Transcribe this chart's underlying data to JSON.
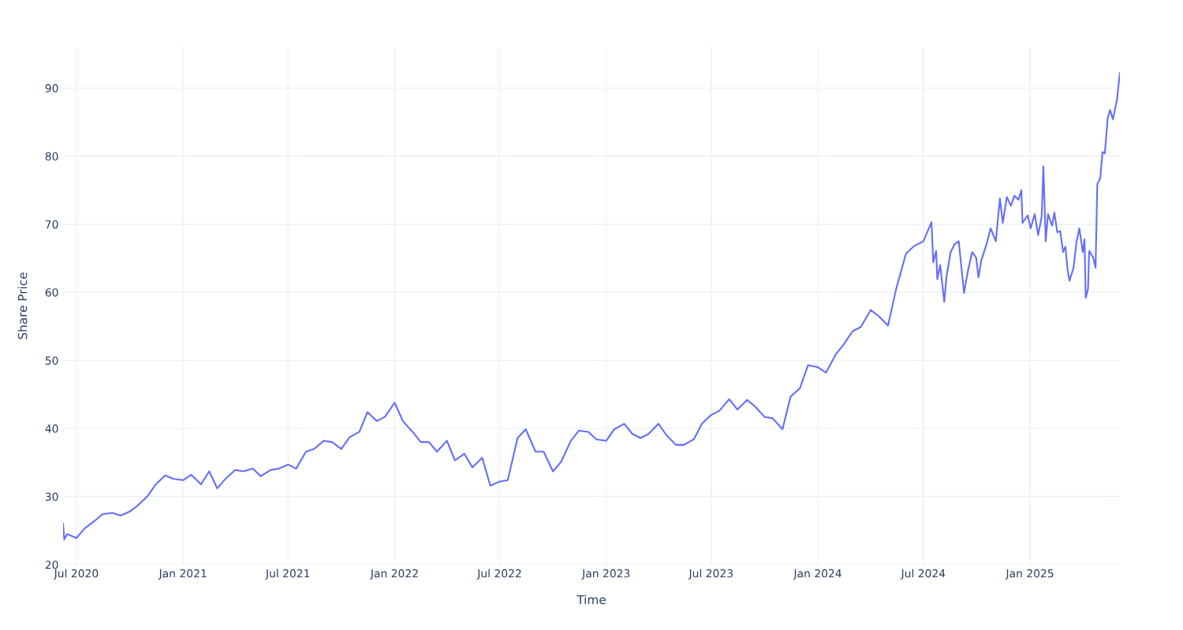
{
  "chart_data": {
    "type": "line",
    "xlabel": "Time",
    "ylabel": "Share Price",
    "grid": true,
    "marker": "none",
    "line_style": "solid",
    "xlim": [
      "2020-06-08",
      "2025-06-05"
    ],
    "xticks": [
      {
        "value": "2020-07-01",
        "label": "Jul 2020"
      },
      {
        "value": "2021-01-01",
        "label": "Jan 2021"
      },
      {
        "value": "2021-07-01",
        "label": "Jul 2021"
      },
      {
        "value": "2022-01-01",
        "label": "Jan 2022"
      },
      {
        "value": "2022-07-01",
        "label": "Jul 2022"
      },
      {
        "value": "2023-01-01",
        "label": "Jan 2023"
      },
      {
        "value": "2023-07-01",
        "label": "Jul 2023"
      },
      {
        "value": "2024-01-01",
        "label": "Jan 2024"
      },
      {
        "value": "2024-07-01",
        "label": "Jul 2024"
      },
      {
        "value": "2025-01-01",
        "label": "Jan 2025"
      }
    ],
    "ylim": [
      20,
      96
    ],
    "yticks": [
      20,
      30,
      40,
      50,
      60,
      70,
      80,
      90
    ],
    "series": [
      {
        "color": "#636efa",
        "x": [
          "2020-06-08",
          "2020-06-10",
          "2020-06-15",
          "2020-07-01",
          "2020-07-15",
          "2020-08-01",
          "2020-08-15",
          "2020-09-01",
          "2020-09-15",
          "2020-10-01",
          "2020-10-15",
          "2020-11-01",
          "2020-11-15",
          "2020-12-01",
          "2020-12-15",
          "2021-01-01",
          "2021-01-15",
          "2021-02-01",
          "2021-02-15",
          "2021-03-01",
          "2021-03-15",
          "2021-04-01",
          "2021-04-15",
          "2021-05-01",
          "2021-05-15",
          "2021-06-01",
          "2021-06-15",
          "2021-07-01",
          "2021-07-15",
          "2021-08-01",
          "2021-08-15",
          "2021-09-01",
          "2021-09-15",
          "2021-10-01",
          "2021-10-15",
          "2021-11-01",
          "2021-11-15",
          "2021-12-01",
          "2021-12-15",
          "2022-01-01",
          "2022-01-15",
          "2022-02-01",
          "2022-02-15",
          "2022-03-01",
          "2022-03-15",
          "2022-04-01",
          "2022-04-15",
          "2022-05-01",
          "2022-05-15",
          "2022-06-01",
          "2022-06-15",
          "2022-07-01",
          "2022-07-15",
          "2022-08-01",
          "2022-08-15",
          "2022-09-01",
          "2022-09-15",
          "2022-10-01",
          "2022-10-15",
          "2022-11-01",
          "2022-11-15",
          "2022-12-01",
          "2022-12-15",
          "2023-01-01",
          "2023-01-15",
          "2023-02-01",
          "2023-02-15",
          "2023-03-01",
          "2023-03-15",
          "2023-04-01",
          "2023-04-15",
          "2023-05-01",
          "2023-05-15",
          "2023-06-01",
          "2023-06-15",
          "2023-07-01",
          "2023-07-15",
          "2023-08-01",
          "2023-08-15",
          "2023-09-01",
          "2023-09-15",
          "2023-10-01",
          "2023-10-15",
          "2023-11-01",
          "2023-11-15",
          "2023-12-01",
          "2023-12-15",
          "2024-01-01",
          "2024-01-15",
          "2024-02-01",
          "2024-02-15",
          "2024-03-01",
          "2024-03-15",
          "2024-04-01",
          "2024-04-15",
          "2024-05-01",
          "2024-05-15",
          "2024-06-01",
          "2024-06-15",
          "2024-07-01",
          "2024-07-15",
          "2024-07-18",
          "2024-07-23",
          "2024-07-25",
          "2024-07-30",
          "2024-08-06",
          "2024-08-10",
          "2024-08-17",
          "2024-08-24",
          "2024-08-31",
          "2024-09-07",
          "2024-09-09",
          "2024-09-16",
          "2024-09-23",
          "2024-09-30",
          "2024-10-04",
          "2024-10-09",
          "2024-10-18",
          "2024-10-25",
          "2024-11-03",
          "2024-11-10",
          "2024-11-15",
          "2024-11-22",
          "2024-11-29",
          "2024-12-05",
          "2024-12-12",
          "2024-12-17",
          "2024-12-19",
          "2024-12-28",
          "2025-01-02",
          "2025-01-09",
          "2025-01-15",
          "2025-01-21",
          "2025-01-24",
          "2025-01-28",
          "2025-02-01",
          "2025-02-08",
          "2025-02-12",
          "2025-02-17",
          "2025-02-22",
          "2025-02-27",
          "2025-03-03",
          "2025-03-07",
          "2025-03-10",
          "2025-03-17",
          "2025-03-22",
          "2025-03-27",
          "2025-04-02",
          "2025-04-05",
          "2025-04-07",
          "2025-04-11",
          "2025-04-13",
          "2025-04-20",
          "2025-04-24",
          "2025-04-27",
          "2025-05-02",
          "2025-05-06",
          "2025-05-10",
          "2025-05-15",
          "2025-05-19",
          "2025-05-24",
          "2025-05-31",
          "2025-06-02",
          "2025-06-05"
        ],
        "values": [
          26.0,
          23.7,
          24.5,
          23.9,
          25.3,
          26.4,
          27.4,
          27.6,
          27.2,
          27.8,
          28.7,
          30.1,
          31.8,
          33.1,
          32.6,
          32.4,
          33.2,
          31.8,
          33.7,
          31.2,
          32.6,
          33.9,
          33.7,
          34.1,
          33.0,
          33.9,
          34.1,
          34.7,
          34.1,
          36.6,
          37.0,
          38.2,
          38.0,
          37.0,
          38.7,
          39.5,
          42.4,
          41.1,
          41.7,
          43.8,
          41.1,
          39.5,
          38.0,
          38.0,
          36.6,
          38.2,
          35.3,
          36.3,
          34.3,
          35.7,
          31.6,
          32.2,
          32.4,
          38.6,
          39.9,
          36.6,
          36.6,
          33.7,
          35.1,
          38.2,
          39.7,
          39.5,
          38.4,
          38.2,
          39.9,
          40.7,
          39.2,
          38.6,
          39.2,
          40.7,
          39.0,
          37.6,
          37.6,
          38.4,
          40.7,
          42.0,
          42.6,
          44.3,
          42.8,
          44.2,
          43.2,
          41.7,
          41.5,
          39.9,
          44.7,
          45.9,
          49.3,
          49.0,
          48.2,
          50.9,
          52.4,
          54.3,
          54.9,
          57.4,
          56.5,
          55.1,
          60.5,
          65.7,
          66.8,
          67.5,
          70.3,
          64.4,
          66.1,
          61.9,
          64.0,
          58.6,
          62.4,
          65.9,
          67.1,
          67.5,
          61.7,
          59.9,
          63.2,
          65.9,
          65.1,
          62.2,
          64.7,
          67.1,
          69.4,
          67.5,
          73.8,
          70.2,
          74.0,
          72.7,
          74.2,
          73.6,
          75.0,
          70.2,
          71.3,
          69.4,
          71.5,
          68.4,
          71.1,
          78.5,
          67.5,
          71.5,
          69.8,
          71.7,
          68.8,
          69.0,
          65.9,
          66.7,
          63.2,
          61.7,
          63.6,
          67.3,
          69.4,
          65.9,
          67.8,
          59.2,
          60.5,
          66.1,
          65.1,
          63.6,
          75.9,
          76.7,
          80.6,
          80.4,
          85.6,
          86.8,
          85.4,
          88.3,
          90.0,
          92.2
        ]
      }
    ]
  }
}
